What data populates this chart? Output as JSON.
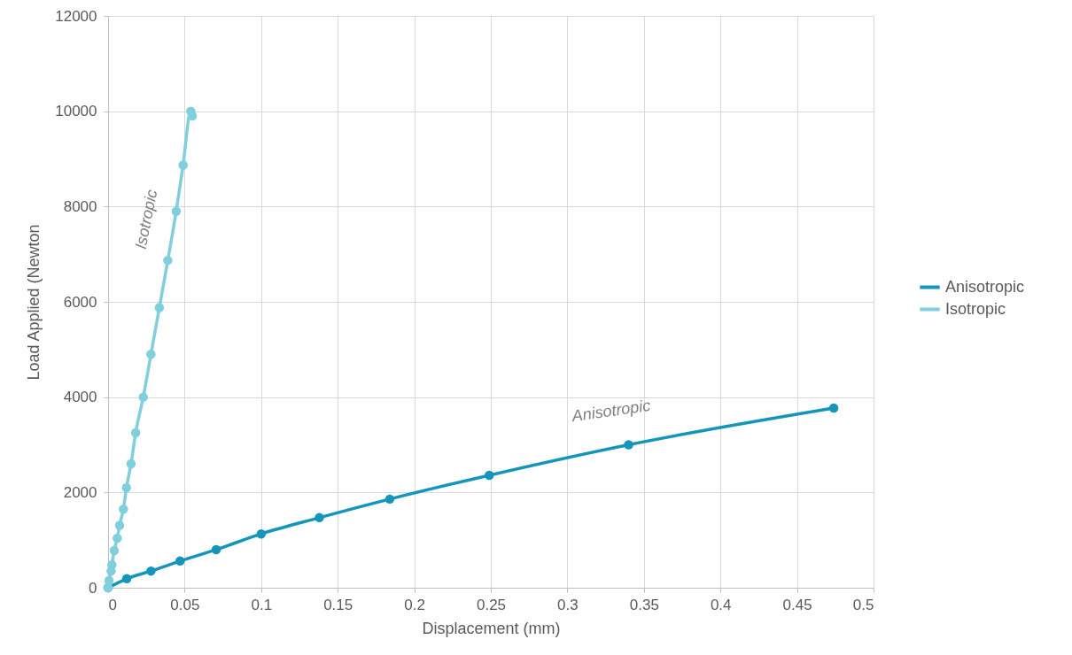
{
  "chart_data": {
    "type": "line",
    "xlabel": "Displacement (mm)",
    "ylabel": "Load Applied (Newton",
    "xlim": [
      0,
      0.5
    ],
    "ylim": [
      0,
      12000
    ],
    "xticks": [
      0,
      0.05,
      0.1,
      0.15,
      0.2,
      0.25,
      0.3,
      0.35,
      0.4,
      0.45,
      0.5
    ],
    "yticks": [
      0,
      2000,
      4000,
      6000,
      8000,
      10000,
      12000
    ],
    "grid": true,
    "legend": "right",
    "marker": "circle",
    "series": [
      {
        "name": "Anisotropic",
        "color": "#1496bb",
        "x": [
          0,
          0.0122,
          0.028,
          0.047,
          0.0706,
          0.1,
          0.138,
          0.184,
          0.249,
          0.34,
          0.474
        ],
        "values": [
          0,
          190,
          350,
          560,
          800,
          1130,
          1470,
          1860,
          2360,
          3000,
          3770
        ]
      },
      {
        "name": "Isotropic",
        "color": "#80cfdc",
        "x": [
          0,
          0.0006,
          0.002,
          0.0025,
          0.004,
          0.006,
          0.0075,
          0.01,
          0.012,
          0.015,
          0.018,
          0.023,
          0.028,
          0.0335,
          0.039,
          0.0445,
          0.049,
          0.054,
          0.055
        ],
        "values": [
          0,
          150,
          350,
          480,
          780,
          1040,
          1310,
          1650,
          2100,
          2600,
          3250,
          4000,
          4900,
          5880,
          6870,
          7900,
          8870,
          10000,
          9900
        ]
      }
    ],
    "annotations": [
      "Isotropic",
      "Anisotropic"
    ]
  }
}
